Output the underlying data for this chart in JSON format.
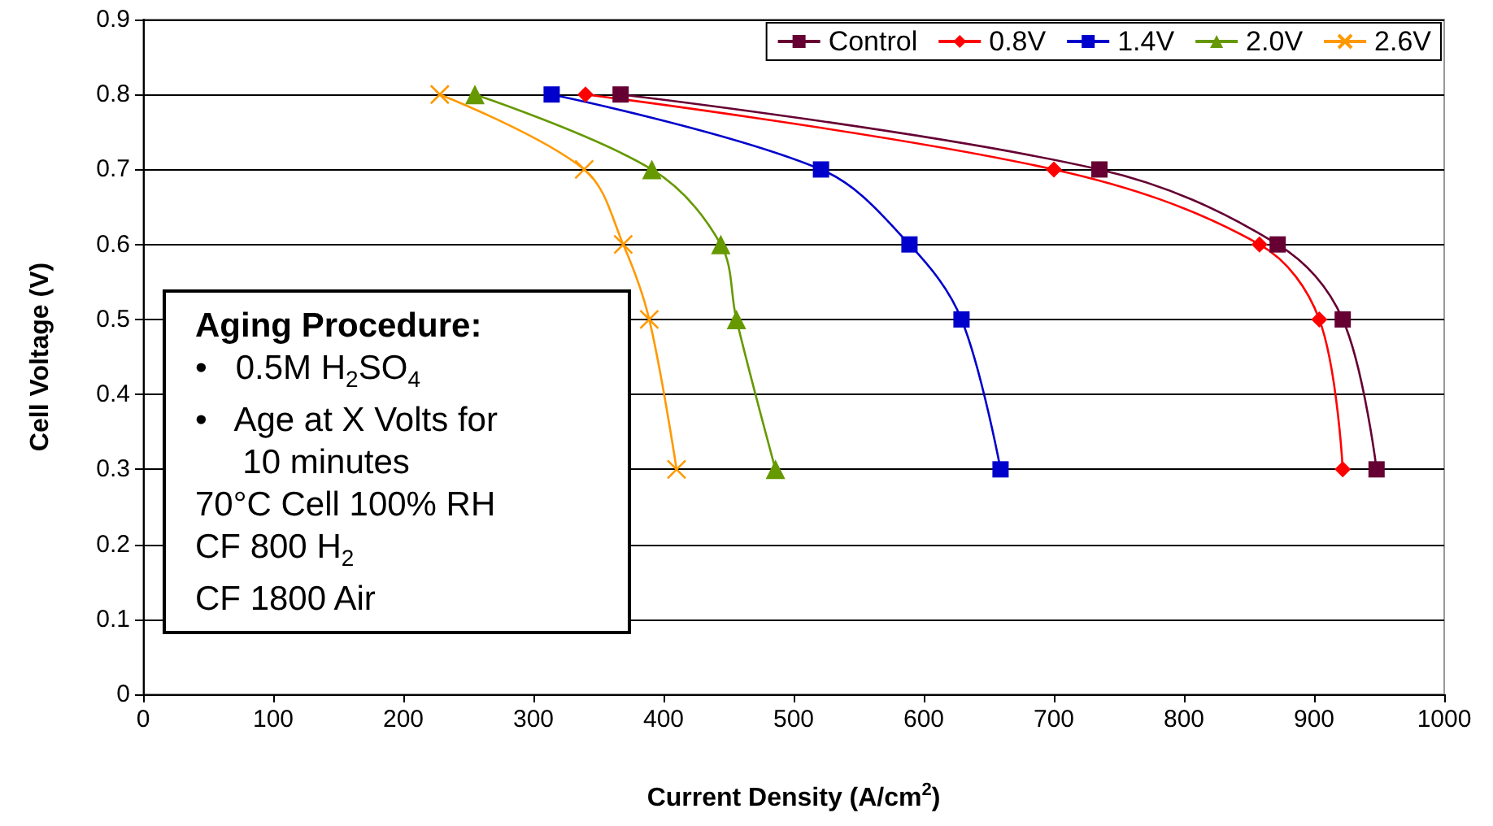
{
  "chart_data": {
    "type": "line",
    "xlabel": "Current Density (A/cm$^{2}$)",
    "ylabel": "Cell Voltage (V)",
    "xlim": [
      0,
      1000
    ],
    "xticks": [
      0,
      100,
      200,
      300,
      400,
      500,
      600,
      700,
      800,
      900,
      1000
    ],
    "ylim": [
      0,
      0.9
    ],
    "yticks": [
      0,
      0.1,
      0.2,
      0.3,
      0.4,
      0.5,
      0.6,
      0.7,
      0.8,
      0.9
    ],
    "grid": "y",
    "legend": "top right",
    "series": [
      {
        "name": "Control",
        "color": "#660033",
        "marker": "square",
        "x": [
          367,
          735,
          872,
          922,
          948
        ],
        "values": [
          0.8,
          0.7,
          0.6,
          0.5,
          0.3
        ]
      },
      {
        "name": "0.8V",
        "color": "#ff0000",
        "marker": "diamond",
        "x": [
          340,
          700,
          858,
          904,
          922
        ],
        "values": [
          0.8,
          0.7,
          0.6,
          0.5,
          0.3
        ]
      },
      {
        "name": "1.4V",
        "color": "#0000cc",
        "marker": "square",
        "x": [
          314,
          521,
          589,
          629,
          659
        ],
        "values": [
          0.8,
          0.7,
          0.6,
          0.5,
          0.3
        ]
      },
      {
        "name": "2.0V",
        "color": "#669900",
        "marker": "triangle",
        "x": [
          255,
          391,
          444,
          456,
          486
        ],
        "values": [
          0.8,
          0.7,
          0.6,
          0.5,
          0.3
        ]
      },
      {
        "name": "2.6V",
        "color": "#ff9900",
        "marker": "cross",
        "x": [
          228,
          339,
          369,
          389,
          410
        ],
        "values": [
          0.8,
          0.7,
          0.6,
          0.5,
          0.3
        ]
      }
    ],
    "annotations": [
      "Aging Procedure:",
      "•   0.5M H$_{2}$SO$_{4}$",
      "•   Age at X Volts for",
      "     10 minutes",
      "70°C Cell 100% RH",
      "CF 800 H$_{2}$",
      "CF 1800 Air"
    ]
  }
}
